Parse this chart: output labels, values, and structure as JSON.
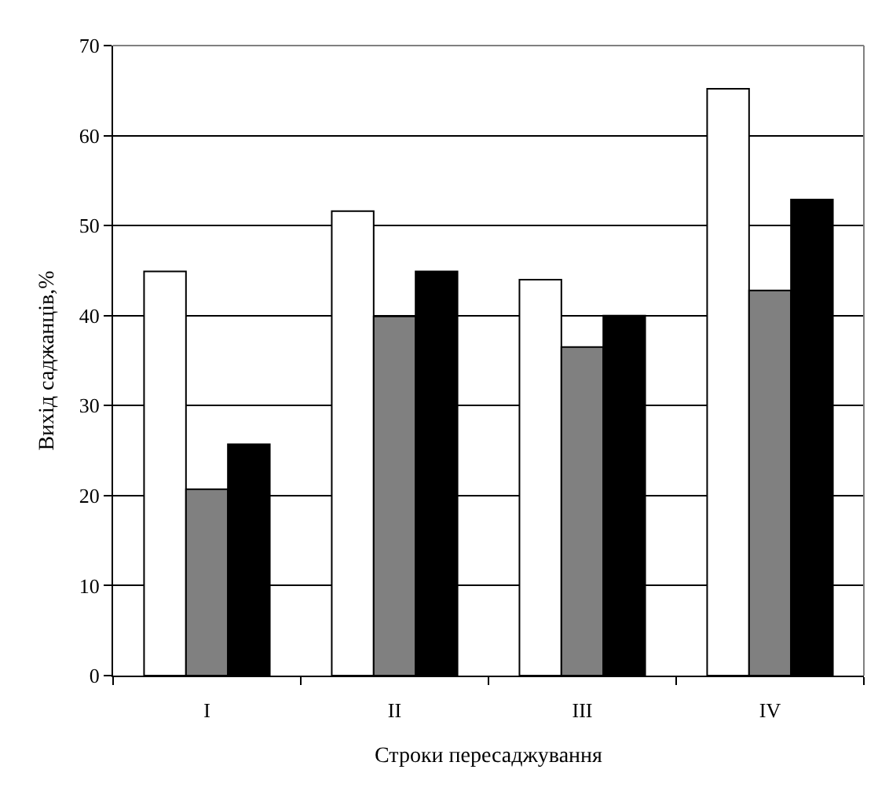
{
  "chart_data": {
    "type": "bar",
    "xlabel": "Строки пересаджування",
    "ylabel": "Вихід саджанців,%",
    "categories": [
      "I",
      "II",
      "III",
      "IV"
    ],
    "series": [
      {
        "color": "#ffffff",
        "values": [
          44.9,
          51.6,
          44.0,
          65.2
        ]
      },
      {
        "color": "#808080",
        "values": [
          20.7,
          39.9,
          36.5,
          42.8
        ]
      },
      {
        "color": "#000000",
        "values": [
          25.7,
          44.9,
          40.0,
          52.9
        ]
      }
    ],
    "ylim": [
      0,
      70
    ],
    "yticks": [
      0,
      10,
      20,
      30,
      40,
      50,
      60,
      70
    ],
    "grid": "y"
  }
}
